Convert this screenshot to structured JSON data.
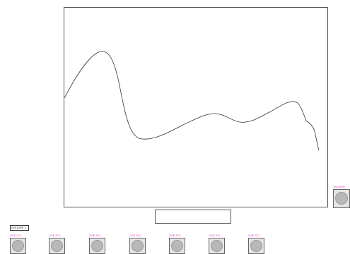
{
  "plot": {
    "line_color": "#333333",
    "frame_color": "#555555"
  },
  "text_box": {
    "value": ""
  },
  "group": {
    "label": "GROUPE 1"
  },
  "right_control": {
    "label": "VALIDER",
    "label_color": "#e040c8"
  },
  "controls": [
    {
      "label": "GSE N°1",
      "label_color": "#e040c8"
    },
    {
      "label": "GSE N°2",
      "label_color": "#e040c8"
    },
    {
      "label": "GSE N°3",
      "label_color": "#e040c8"
    },
    {
      "label": "GSE N°4",
      "label_color": "#e040c8"
    },
    {
      "label": "GSE N°5",
      "label_color": "#e040c8"
    },
    {
      "label": "GSE N°6",
      "label_color": "#e040c8"
    },
    {
      "label": "GSE N°7",
      "label_color": "#e040c8"
    }
  ]
}
